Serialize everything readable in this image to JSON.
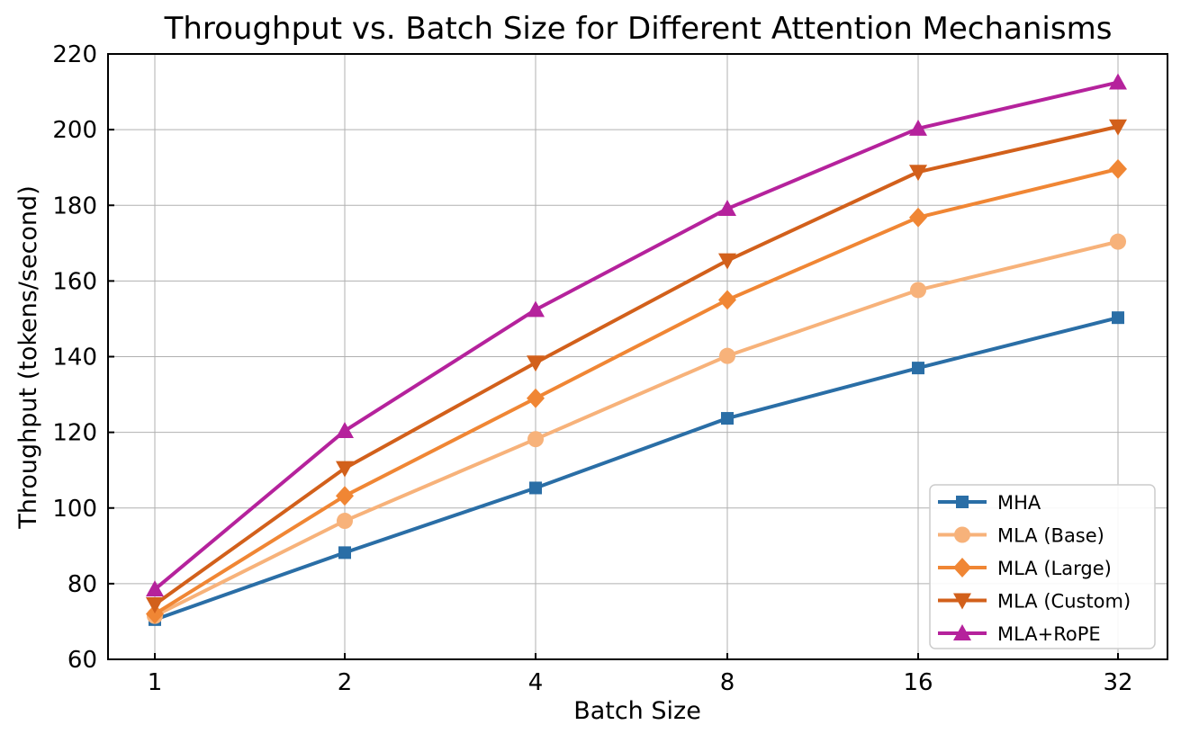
{
  "chart_data": {
    "type": "line",
    "title": "Throughput vs. Batch Size for Different Attention Mechanisms",
    "xlabel": "Batch Size",
    "ylabel": "Throughput (tokens/second)",
    "categories": [
      "1",
      "2",
      "4",
      "8",
      "16",
      "32"
    ],
    "yticks": [
      "60",
      "80",
      "100",
      "120",
      "140",
      "160",
      "180",
      "200",
      "220"
    ],
    "ylim": [
      60,
      220
    ],
    "grid": true,
    "legend_position": "lower-right",
    "series": [
      {
        "name": "MHA",
        "color": "#2a6ea6",
        "marker": "square",
        "values": [
          70.5,
          88.2,
          105.3,
          123.7,
          137.0,
          150.3
        ]
      },
      {
        "name": "MLA (Base)",
        "color": "#f7b27a",
        "marker": "circle",
        "values": [
          71.5,
          96.6,
          118.2,
          140.2,
          157.6,
          170.4
        ]
      },
      {
        "name": "MLA (Large)",
        "color": "#f08634",
        "marker": "diamond",
        "values": [
          72.0,
          103.2,
          129.0,
          155.0,
          176.8,
          189.6
        ]
      },
      {
        "name": "MLA (Custom)",
        "color": "#d2601b",
        "marker": "triangle-down",
        "values": [
          74.5,
          110.5,
          138.4,
          165.4,
          188.8,
          200.8
        ]
      },
      {
        "name": "MLA+RoPE",
        "color": "#b5229c",
        "marker": "triangle-up",
        "values": [
          78.5,
          120.4,
          152.4,
          179.1,
          200.3,
          212.5
        ]
      }
    ]
  }
}
